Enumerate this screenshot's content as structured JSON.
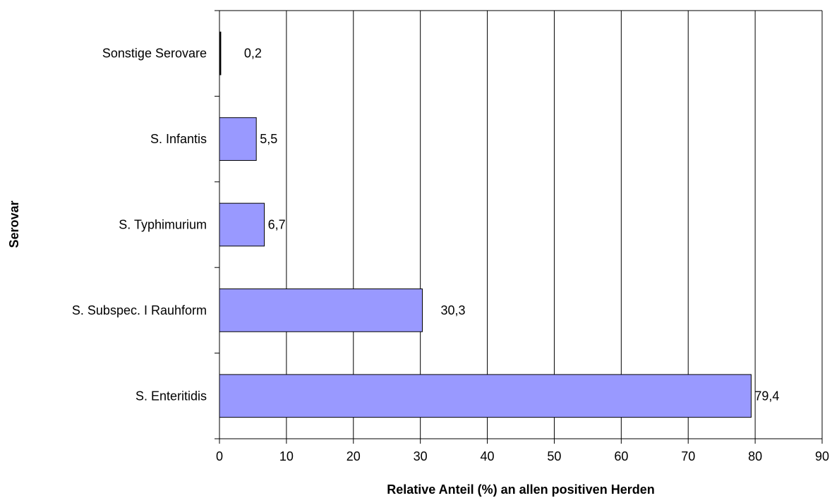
{
  "chart_data": {
    "type": "bar",
    "orientation": "horizontal",
    "categories": [
      "S. Enteritidis",
      "S. Subspec. I Rauhform",
      "S. Typhimurium",
      "S. Infantis",
      "Sonstige Serovare"
    ],
    "values": [
      79.4,
      30.3,
      6.7,
      5.5,
      0.2
    ],
    "data_labels": [
      "79,4",
      "30,3",
      "6,7",
      "5,5",
      "0,2"
    ],
    "xlabel": "Relative Anteil (%) an allen positiven Herden",
    "ylabel": "Serovar",
    "xlim": [
      0,
      90
    ],
    "xticks": [
      "0",
      "10",
      "20",
      "30",
      "40",
      "50",
      "60",
      "70",
      "80",
      "90"
    ],
    "grid": "vertical",
    "legend": "none",
    "bar_color": "#9999ff",
    "bar_edge_color": "#000000"
  }
}
